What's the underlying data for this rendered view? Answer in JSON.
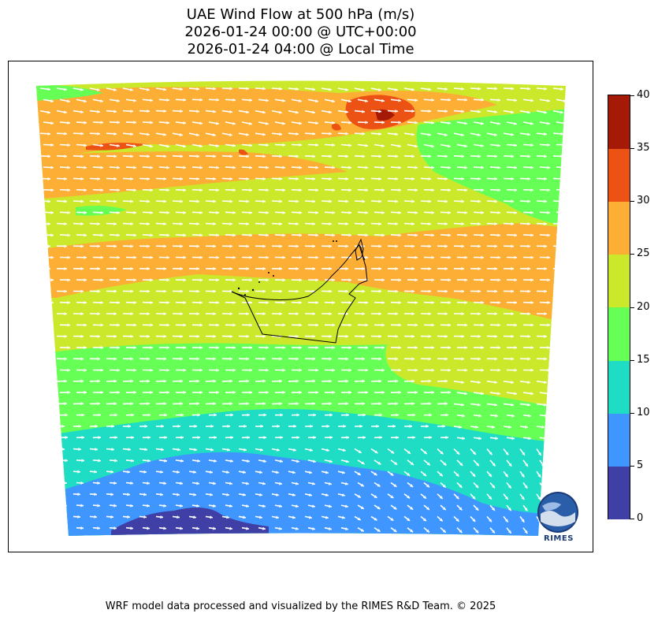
{
  "title": {
    "line1": "UAE Wind Flow at 500 hPa (m/s)",
    "line2": "2026-01-24 00:00 @ UTC+00:00",
    "line3": "2026-01-24 04:00 @ Local Time"
  },
  "colorbar": {
    "min": 0,
    "max": 40,
    "tick_labels": [
      "0",
      "5",
      "10",
      "15",
      "20",
      "25",
      "30",
      "35",
      "40"
    ],
    "bands": [
      {
        "from": 0,
        "to": 5,
        "color": "#3f3fa6"
      },
      {
        "from": 5,
        "to": 10,
        "color": "#4096ff"
      },
      {
        "from": 10,
        "to": 15,
        "color": "#1fdcc4"
      },
      {
        "from": 15,
        "to": 20,
        "color": "#66ff55"
      },
      {
        "from": 20,
        "to": 25,
        "color": "#cbe92a"
      },
      {
        "from": 25,
        "to": 30,
        "color": "#fdae35"
      },
      {
        "from": 30,
        "to": 35,
        "color": "#ec5214"
      },
      {
        "from": 35,
        "to": 40,
        "color": "#a51a06"
      }
    ]
  },
  "map": {
    "variable": "wind speed at 500 hPa",
    "units": "m/s",
    "arrow_color": "#ffffff",
    "boundary_color": "#000000",
    "region": "UAE"
  },
  "logo": {
    "name": "rimes-logo",
    "text": "RIMES"
  },
  "credit": "WRF model data processed and visualized by the RIMES R&D Team. © 2025"
}
